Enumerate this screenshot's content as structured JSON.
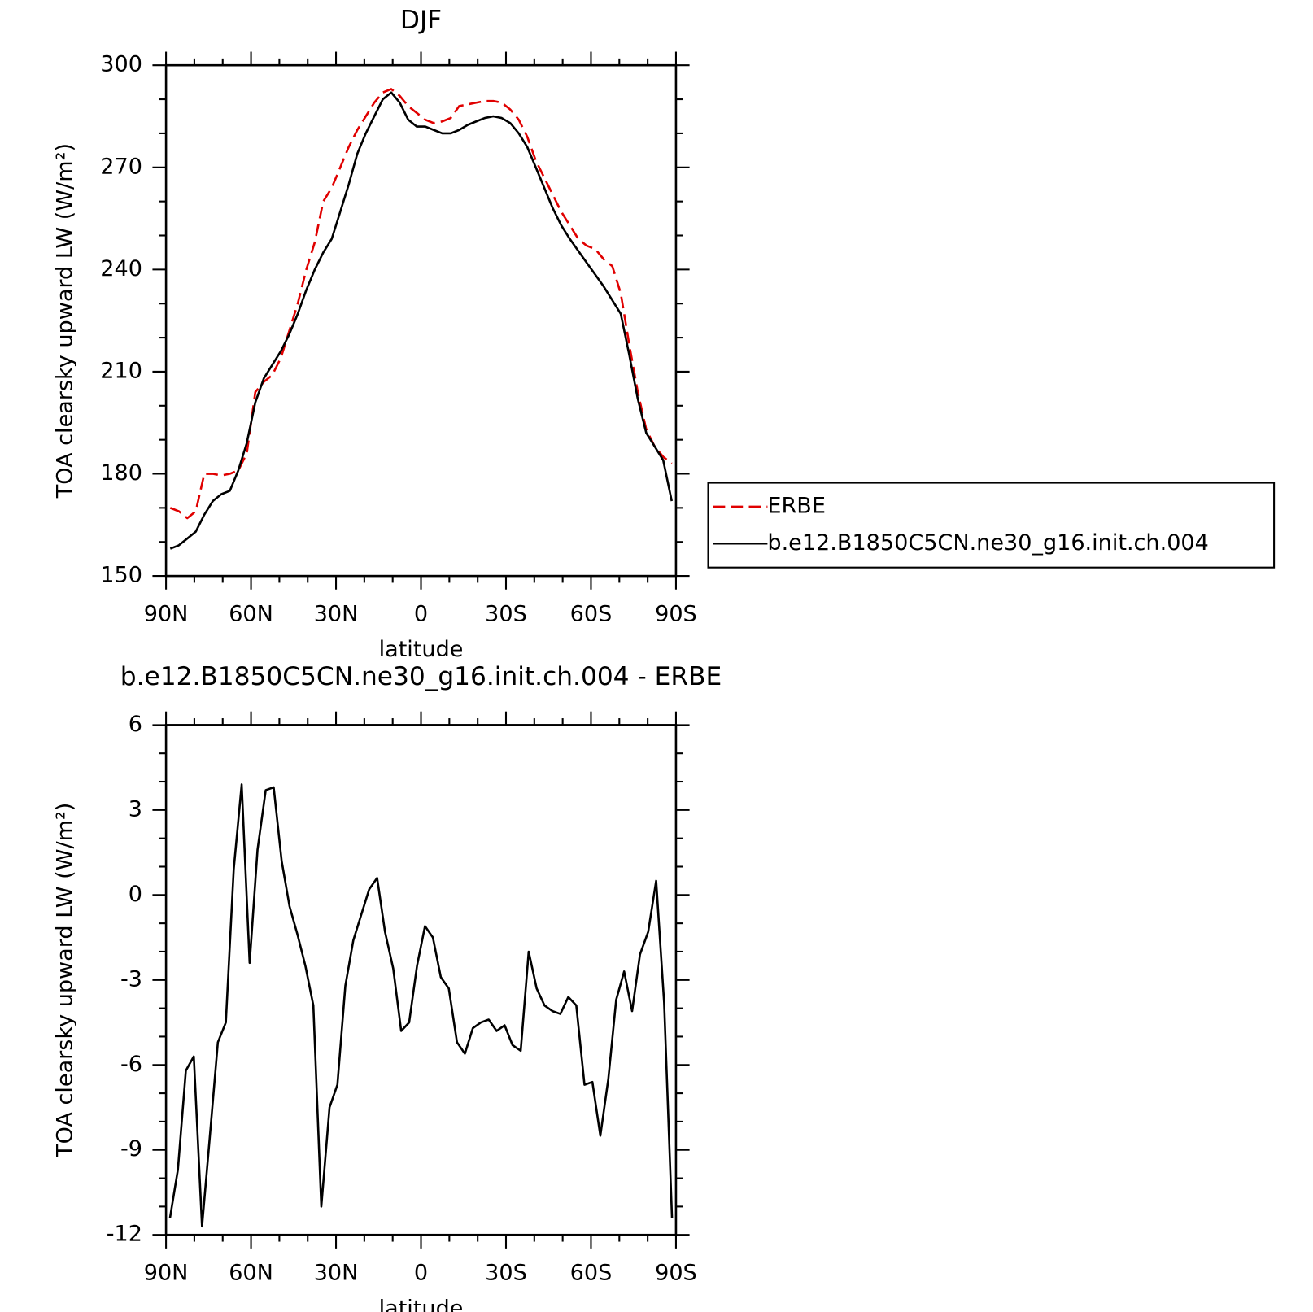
{
  "chart_data": [
    {
      "type": "line",
      "title": "DJF",
      "xlabel": "latitude",
      "ylabel": "TOA clearsky upward LW (W/m²)",
      "x": [
        88.5,
        85.5,
        82.5,
        79.5,
        76.5,
        73.5,
        70.5,
        67.5,
        64.5,
        61.5,
        58.5,
        55.5,
        52.5,
        49.5,
        46.5,
        43.5,
        40.5,
        37.5,
        34.5,
        31.5,
        28.5,
        25.5,
        22.5,
        19.5,
        16.5,
        13.5,
        10.5,
        7.5,
        4.5,
        1.5,
        -1.5,
        -4.5,
        -7.5,
        -10.5,
        -13.5,
        -16.5,
        -19.5,
        -22.5,
        -25.5,
        -28.5,
        -31.5,
        -34.5,
        -37.5,
        -40.5,
        -43.5,
        -46.5,
        -49.5,
        -52.5,
        -55.5,
        -58.5,
        -61.5,
        -64.5,
        -67.5,
        -70.5,
        -73.5,
        -76.5,
        -79.5,
        -82.5,
        -85.5,
        -88.5
      ],
      "series": [
        {
          "name": "ERBE",
          "color": "#e00000",
          "linestyle": "dashed",
          "values": [
            170,
            169,
            167,
            169,
            180,
            180,
            179.5,
            180,
            181,
            186,
            204,
            207,
            209,
            214,
            222,
            230,
            240,
            248,
            260,
            264,
            270,
            276,
            281,
            285,
            289,
            292,
            293,
            291,
            288,
            286,
            284,
            283,
            283.5,
            284.5,
            288,
            288.5,
            289,
            289.5,
            289.5,
            289,
            287,
            284,
            279,
            272,
            267,
            262,
            257,
            253,
            249,
            247,
            246,
            243,
            241,
            233,
            218,
            204,
            193,
            188,
            185,
            183
          ]
        },
        {
          "name": "b.e12.B1850C5CN.ne30_g16.init.ch.004",
          "color": "#000000",
          "linestyle": "solid",
          "values": [
            158,
            159,
            161,
            163,
            168,
            172,
            174,
            175,
            181,
            189,
            201,
            208,
            212,
            216,
            221,
            227,
            234,
            240,
            245,
            249,
            257,
            265,
            274,
            280,
            285,
            290,
            292,
            289,
            284,
            282,
            282,
            281,
            280,
            280,
            281,
            282.5,
            283.5,
            284.5,
            285,
            284.5,
            283,
            280,
            276,
            270,
            264,
            258,
            253,
            249,
            245.5,
            242,
            238.5,
            235,
            231,
            227,
            215,
            202,
            192,
            188,
            184,
            172
          ]
        }
      ],
      "xlim": [
        90,
        -90
      ],
      "xticks": [
        {
          "value": 90,
          "label": "90N"
        },
        {
          "value": 60,
          "label": "60N"
        },
        {
          "value": 30,
          "label": "30N"
        },
        0,
        {
          "value": -30,
          "label": "30S"
        },
        {
          "value": -60,
          "label": "60S"
        },
        {
          "value": -90,
          "label": "90S"
        }
      ],
      "xminorticks": [
        80,
        70,
        50,
        40,
        20,
        10,
        -10,
        -20,
        -40,
        -50,
        -70,
        -80
      ],
      "ylim": [
        150,
        300
      ],
      "yticks": [
        150,
        180,
        210,
        240,
        270,
        300
      ],
      "yminorticks": [
        160,
        170,
        190,
        200,
        220,
        230,
        250,
        260,
        280,
        290
      ],
      "legend": "outside right"
    },
    {
      "type": "line",
      "title": "b.e12.B1850C5CN.ne30_g16.init.ch.004 - ERBE",
      "xlabel": "latitude",
      "ylabel": "TOA clearsky upward LW (W/m²)",
      "x": [
        88.6,
        85.8,
        83.0,
        80.2,
        77.3,
        74.5,
        71.7,
        68.9,
        66.1,
        63.3,
        60.5,
        57.7,
        54.8,
        52.0,
        49.2,
        46.4,
        43.6,
        40.8,
        38.0,
        35.2,
        32.3,
        29.5,
        26.7,
        23.9,
        21.1,
        18.3,
        15.5,
        12.7,
        9.8,
        7.0,
        4.2,
        1.4,
        -1.4,
        -4.2,
        -7.0,
        -9.8,
        -12.7,
        -15.5,
        -18.3,
        -21.1,
        -23.9,
        -26.7,
        -29.5,
        -32.3,
        -35.2,
        -38.0,
        -40.8,
        -43.6,
        -46.4,
        -49.2,
        -52.0,
        -54.8,
        -57.7,
        -60.5,
        -63.3,
        -66.1,
        -68.9,
        -71.7,
        -74.5,
        -77.3,
        -80.2,
        -83.0,
        -85.8,
        -88.6
      ],
      "color": "#000000",
      "values": [
        -11.4,
        -9.7,
        -6.2,
        -5.7,
        -11.7,
        -8.5,
        -5.2,
        -4.5,
        0.9,
        3.9,
        -2.4,
        1.6,
        3.7,
        3.8,
        1.2,
        -0.4,
        -1.4,
        -2.5,
        -3.9,
        -11.0,
        -7.5,
        -6.7,
        -3.2,
        -1.6,
        -0.7,
        0.2,
        0.6,
        -1.3,
        -2.6,
        -4.8,
        -4.5,
        -2.5,
        -1.1,
        -1.5,
        -2.9,
        -3.3,
        -5.2,
        -5.6,
        -4.7,
        -4.5,
        -4.4,
        -4.8,
        -4.6,
        -5.3,
        -5.5,
        -2.0,
        -3.3,
        -3.9,
        -4.1,
        -4.2,
        -3.6,
        -3.9,
        -6.7,
        -6.6,
        -8.5,
        -6.5,
        -3.7,
        -2.7,
        -4.1,
        -2.1,
        -1.3,
        0.5,
        -3.8,
        -11.4
      ],
      "xlim": [
        90,
        -90
      ],
      "xticks": [
        {
          "value": 90,
          "label": "90N"
        },
        {
          "value": 60,
          "label": "60N"
        },
        {
          "value": 30,
          "label": "30N"
        },
        0,
        {
          "value": -30,
          "label": "30S"
        },
        {
          "value": -60,
          "label": "60S"
        },
        {
          "value": -90,
          "label": "90S"
        }
      ],
      "xminorticks": [
        80,
        70,
        50,
        40,
        20,
        10,
        -10,
        -20,
        -40,
        -50,
        -70,
        -80
      ],
      "ylim": [
        -12,
        6
      ],
      "yticks": [
        -12,
        -9,
        -6,
        -3,
        0,
        3,
        6
      ],
      "yminorticks": [
        -11,
        -10,
        -8,
        -7,
        -5,
        -4,
        -2,
        -1,
        1,
        2,
        4,
        5
      ]
    }
  ]
}
